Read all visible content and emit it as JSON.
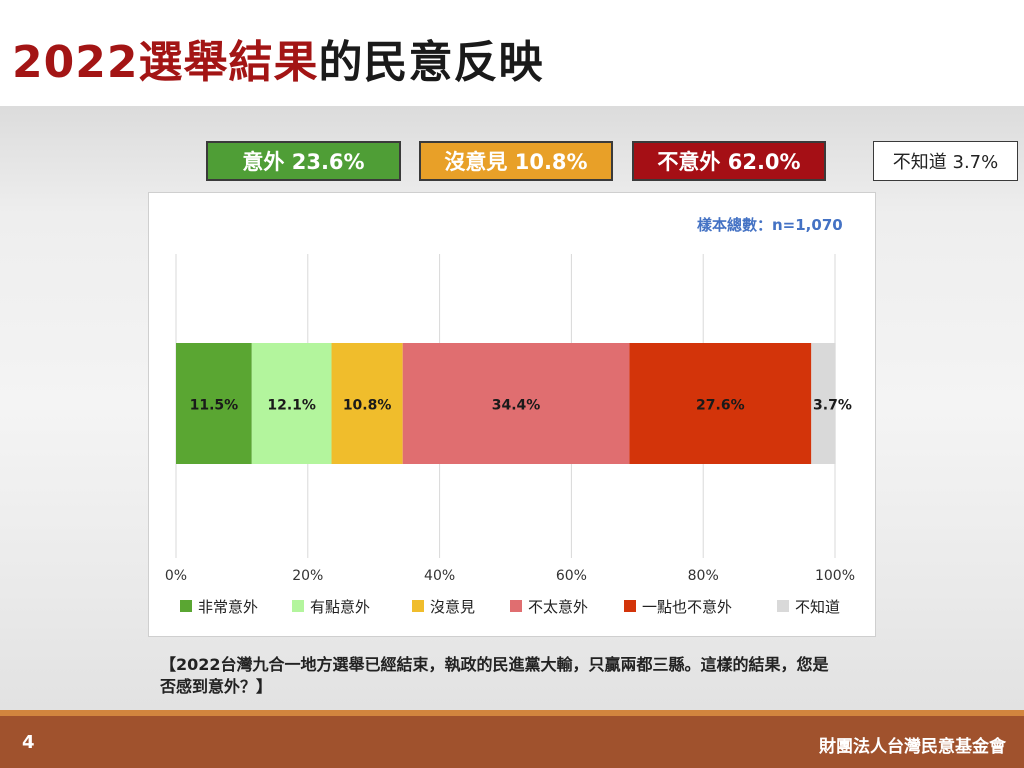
{
  "title": {
    "highlight": "2022選舉結果",
    "rest": "的民意反映"
  },
  "tags": [
    {
      "label": "意外 23.6%"
    },
    {
      "label": "沒意見 10.8%"
    },
    {
      "label": "不意外 62.0%"
    },
    {
      "label": "不知道 3.7%"
    }
  ],
  "sample_note": "樣本總數：n=1,070",
  "question": "【2022台灣九合一地方選舉已經結束，執政的民進黨大輸，只贏兩都三縣。這樣的結果，您是否感到意外？】",
  "footer": {
    "page_number": "4",
    "organization": "財團法人台灣民意基金會"
  },
  "chart_data": {
    "type": "bar",
    "orientation": "horizontal-stacked-100",
    "xlim": [
      0,
      100
    ],
    "x_ticks": [
      "0%",
      "20%",
      "40%",
      "60%",
      "80%",
      "100%"
    ],
    "grid": true,
    "legend_position": "bottom",
    "series": [
      {
        "name": "非常意外",
        "value": 11.5,
        "label": "11.5%",
        "color": "#5aa632"
      },
      {
        "name": "有點意外",
        "value": 12.1,
        "label": "12.1%",
        "color": "#b3f59d"
      },
      {
        "name": "沒意見",
        "value": 10.8,
        "label": "10.8%",
        "color": "#f0bd2c"
      },
      {
        "name": "不太意外",
        "value": 34.4,
        "label": "34.4%",
        "color": "#e06e70"
      },
      {
        "name": "一點也不意外",
        "value": 27.6,
        "label": "27.6%",
        "color": "#d3340a"
      },
      {
        "name": "不知道",
        "value": 3.7,
        "label": "3.7%",
        "color": "#d9d9d9"
      }
    ]
  }
}
